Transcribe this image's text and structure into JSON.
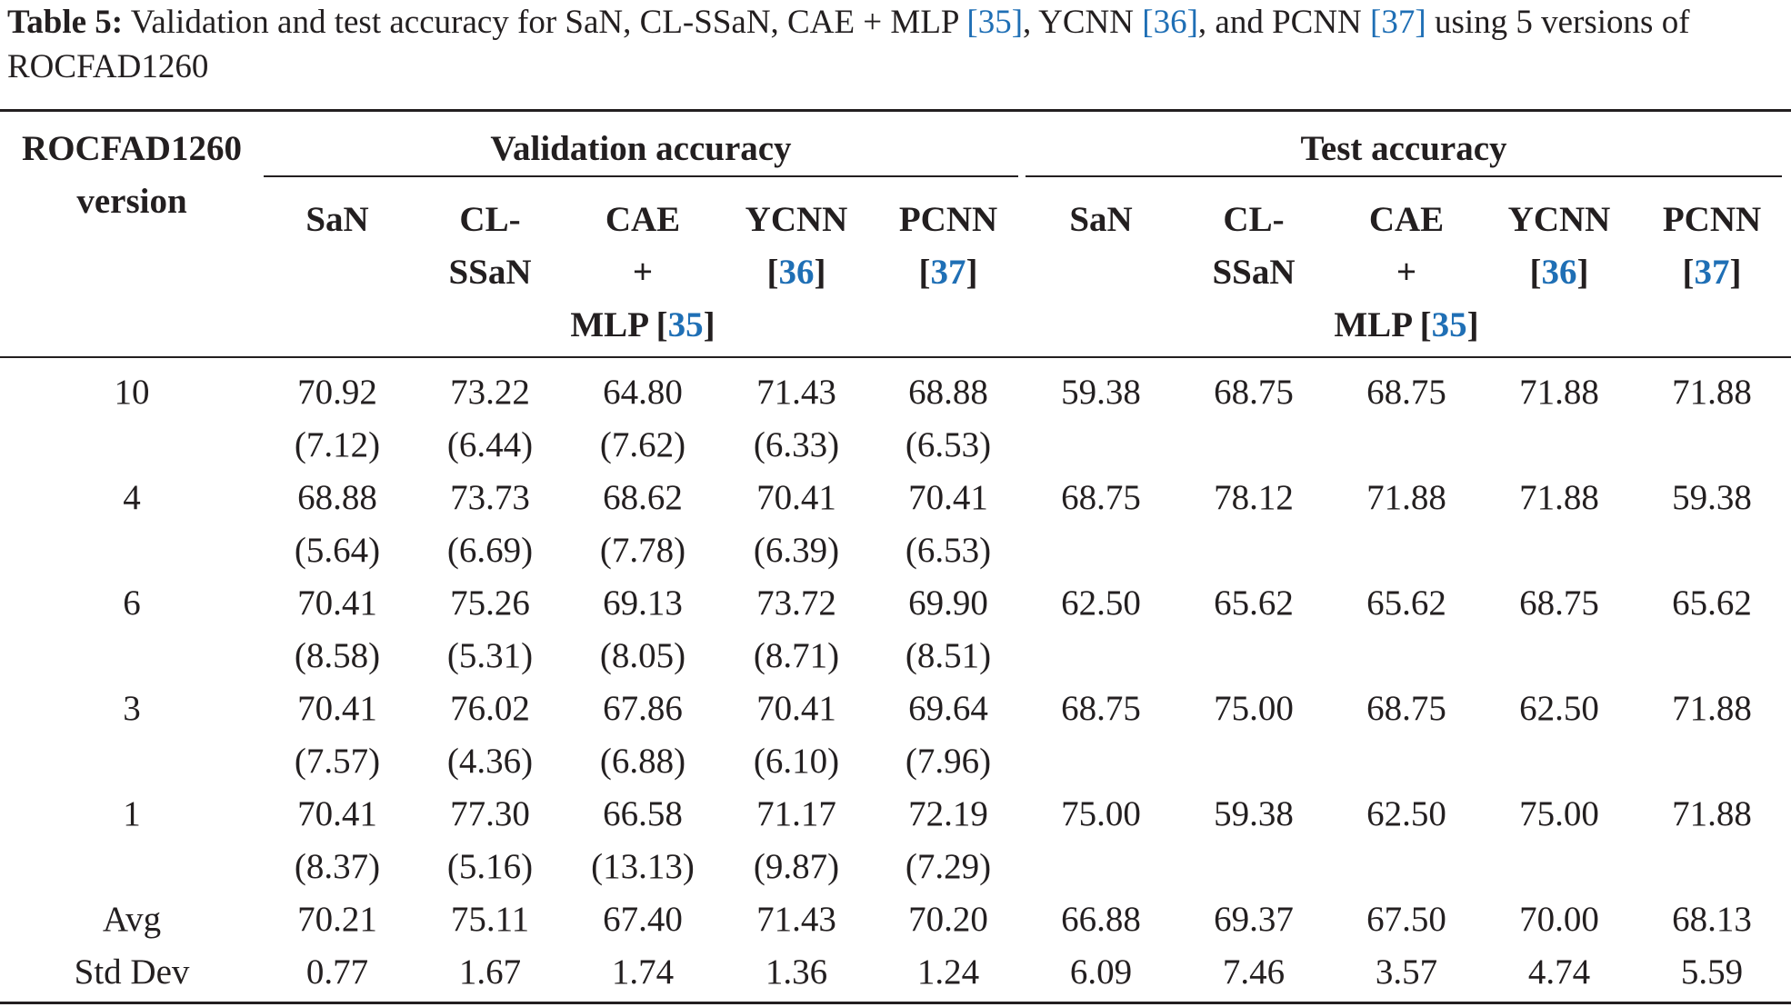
{
  "caption": {
    "label": "Table 5:",
    "text_a": " Validation and test accuracy for SaN, CL-SSaN, CAE + MLP ",
    "ref_a": "[35]",
    "text_b": ", YCNN ",
    "ref_b": "[36]",
    "text_c": ", and PCNN ",
    "ref_c": "[37]",
    "text_d": " using 5 versions of ROCFAD1260"
  },
  "header": {
    "row_col_line1": "ROCFAD1260",
    "row_col_line2": "version",
    "group_validation": "Validation accuracy",
    "group_test": "Test accuracy",
    "columns": [
      {
        "line1": "SaN",
        "line2": "",
        "line3": "",
        "ref": ""
      },
      {
        "line1": "CL-",
        "line2": "SSaN",
        "line3": "",
        "ref": ""
      },
      {
        "line1": "CAE",
        "line2": "+",
        "line3": "MLP ",
        "ref": "35"
      },
      {
        "line1": "YCNN",
        "line2": "",
        "line3": "",
        "ref": "36"
      },
      {
        "line1": "PCNN",
        "line2": "",
        "line3": "",
        "ref": "37"
      }
    ]
  },
  "rows": [
    {
      "version": "10",
      "val": [
        "70.92",
        "73.22",
        "64.80",
        "71.43",
        "68.88"
      ],
      "val_sd": [
        "(7.12)",
        "(6.44)",
        "(7.62)",
        "(6.33)",
        "(6.53)"
      ],
      "test": [
        "59.38",
        "68.75",
        "68.75",
        "71.88",
        "71.88"
      ]
    },
    {
      "version": "4",
      "val": [
        "68.88",
        "73.73",
        "68.62",
        "70.41",
        "70.41"
      ],
      "val_sd": [
        "(5.64)",
        "(6.69)",
        "(7.78)",
        "(6.39)",
        "(6.53)"
      ],
      "test": [
        "68.75",
        "78.12",
        "71.88",
        "71.88",
        "59.38"
      ]
    },
    {
      "version": "6",
      "val": [
        "70.41",
        "75.26",
        "69.13",
        "73.72",
        "69.90"
      ],
      "val_sd": [
        "(8.58)",
        "(5.31)",
        "(8.05)",
        "(8.71)",
        "(8.51)"
      ],
      "test": [
        "62.50",
        "65.62",
        "65.62",
        "68.75",
        "65.62"
      ]
    },
    {
      "version": "3",
      "val": [
        "70.41",
        "76.02",
        "67.86",
        "70.41",
        "69.64"
      ],
      "val_sd": [
        "(7.57)",
        "(4.36)",
        "(6.88)",
        "(6.10)",
        "(7.96)"
      ],
      "test": [
        "68.75",
        "75.00",
        "68.75",
        "62.50",
        "71.88"
      ]
    },
    {
      "version": "1",
      "val": [
        "70.41",
        "77.30",
        "66.58",
        "71.17",
        "72.19"
      ],
      "val_sd": [
        "(8.37)",
        "(5.16)",
        "(13.13)",
        "(9.87)",
        "(7.29)"
      ],
      "test": [
        "75.00",
        "59.38",
        "62.50",
        "75.00",
        "71.88"
      ]
    }
  ],
  "summary": [
    {
      "label": "Avg",
      "val": [
        "70.21",
        "75.11",
        "67.40",
        "71.43",
        "70.20"
      ],
      "test": [
        "66.88",
        "69.37",
        "67.50",
        "70.00",
        "68.13"
      ]
    },
    {
      "label": "Std Dev",
      "val": [
        "0.77",
        "1.67",
        "1.74",
        "1.36",
        "1.24"
      ],
      "test": [
        "6.09",
        "7.46",
        "3.57",
        "4.74",
        "5.59"
      ]
    }
  ]
}
